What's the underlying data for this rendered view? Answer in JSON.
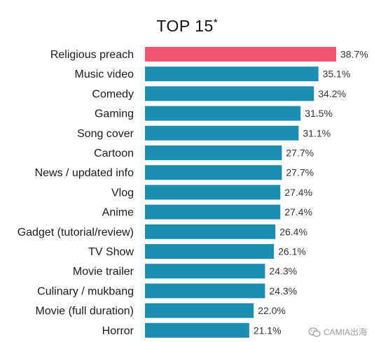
{
  "chart_data": {
    "type": "bar",
    "orientation": "horizontal",
    "title": "TOP 15",
    "title_marker": "*",
    "categories": [
      "Religious preach",
      "Music video",
      "Comedy",
      "Gaming",
      "Song cover",
      "Cartoon",
      "News / updated info",
      "Vlog",
      "Anime",
      "Gadget (tutorial/review)",
      "TV Show",
      "Movie trailer",
      "Culinary / mukbang",
      "Movie (full duration)",
      "Horror"
    ],
    "values": [
      38.7,
      35.1,
      34.2,
      31.5,
      31.1,
      27.7,
      27.7,
      27.4,
      27.4,
      26.4,
      26.1,
      24.3,
      24.3,
      22.0,
      21.1
    ],
    "value_labels": [
      "38.7%",
      "35.1%",
      "34.2%",
      "31.5%",
      "31.1%",
      "27.7%",
      "27.7%",
      "27.4%",
      "27.4%",
      "26.4%",
      "26.1%",
      "24.3%",
      "24.3%",
      "22.0%",
      "21.1%"
    ],
    "unit": "%",
    "xlim": [
      0,
      38.7
    ],
    "grid": false,
    "legend": "none",
    "colors": {
      "highlight": "#f0566f",
      "bar": "#1b8fb1"
    }
  },
  "watermark": {
    "text": "CAMIA出海",
    "icon": "wechat-icon"
  }
}
